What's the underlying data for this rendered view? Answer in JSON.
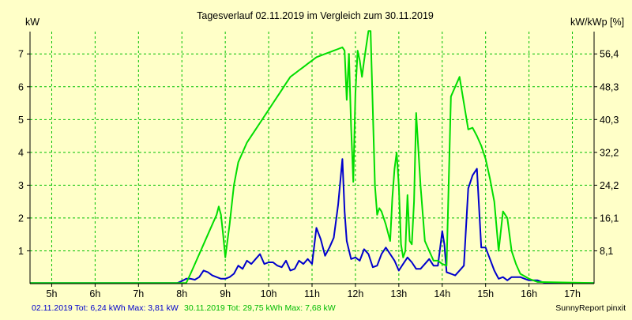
{
  "chart_data": {
    "type": "line",
    "title": "Tagesverlauf 02.11.2019 im Vergleich zum 30.11.2019",
    "ylabel_left": "kW",
    "ylabel_right": "kW/kWp [%]",
    "xlim": [
      4.5,
      17.5
    ],
    "ylim": [
      0,
      7.68
    ],
    "x_ticks": [
      5,
      6,
      7,
      8,
      9,
      10,
      11,
      12,
      13,
      14,
      15,
      16,
      17
    ],
    "x_tick_labels": [
      "5h",
      "6h",
      "7h",
      "8h",
      "9h",
      "10h",
      "11h",
      "12h",
      "13h",
      "14h",
      "15h",
      "16h",
      "17h"
    ],
    "y_ticks_left": [
      1,
      2,
      3,
      4,
      5,
      6,
      7
    ],
    "y_tick_labels_left": [
      "1",
      "2",
      "3",
      "4",
      "5",
      "6",
      "7"
    ],
    "y_ticks_right": [
      1,
      2,
      3,
      4,
      5,
      6,
      7
    ],
    "y_tick_labels_right": [
      "8,1",
      "16,1",
      "24,2",
      "32,2",
      "40,3",
      "48,3",
      "56,4"
    ],
    "grid": true,
    "series": [
      {
        "name": "02.11.2019",
        "color": "#0000cc",
        "x": [
          4.5,
          7.9,
          8.0,
          8.1,
          8.2,
          8.3,
          8.4,
          8.5,
          8.6,
          8.7,
          8.8,
          8.9,
          9.0,
          9.1,
          9.2,
          9.3,
          9.4,
          9.5,
          9.6,
          9.7,
          9.8,
          9.9,
          10.0,
          10.1,
          10.2,
          10.3,
          10.4,
          10.5,
          10.6,
          10.7,
          10.8,
          10.9,
          11.0,
          11.1,
          11.2,
          11.3,
          11.4,
          11.5,
          11.6,
          11.7,
          11.75,
          11.8,
          11.9,
          12.0,
          12.1,
          12.2,
          12.3,
          12.4,
          12.5,
          12.6,
          12.7,
          12.8,
          12.9,
          13.0,
          13.1,
          13.2,
          13.3,
          13.4,
          13.5,
          13.6,
          13.7,
          13.8,
          13.9,
          14.0,
          14.05,
          14.1,
          14.2,
          14.3,
          14.4,
          14.5,
          14.6,
          14.7,
          14.8,
          14.9,
          15.0,
          15.1,
          15.2,
          15.3,
          15.4,
          15.5,
          15.6,
          15.7,
          15.8,
          15.9,
          16.0,
          16.1,
          16.2,
          16.3,
          16.4,
          16.6,
          16.8,
          17.5
        ],
        "y": [
          0.02,
          0.02,
          0.08,
          0.15,
          0.15,
          0.12,
          0.2,
          0.4,
          0.35,
          0.25,
          0.2,
          0.15,
          0.15,
          0.2,
          0.3,
          0.55,
          0.45,
          0.7,
          0.6,
          0.75,
          0.9,
          0.6,
          0.65,
          0.65,
          0.55,
          0.5,
          0.7,
          0.4,
          0.45,
          0.7,
          0.6,
          0.75,
          0.6,
          1.7,
          1.35,
          0.85,
          1.1,
          1.4,
          2.4,
          3.8,
          2.2,
          1.3,
          0.75,
          0.8,
          0.7,
          1.05,
          0.9,
          0.5,
          0.55,
          0.9,
          1.1,
          0.9,
          0.7,
          0.4,
          0.6,
          0.8,
          0.65,
          0.45,
          0.45,
          0.6,
          0.75,
          0.55,
          0.55,
          1.6,
          1.2,
          0.35,
          0.3,
          0.25,
          0.4,
          0.55,
          2.9,
          3.3,
          3.5,
          1.1,
          1.1,
          0.75,
          0.4,
          0.15,
          0.2,
          0.1,
          0.2,
          0.2,
          0.2,
          0.15,
          0.1,
          0.1,
          0.1,
          0.05,
          0.02,
          0.02,
          0.02,
          0.02
        ]
      },
      {
        "name": "30.11.2019",
        "color": "#00dd00",
        "x": [
          4.5,
          8.1,
          8.2,
          8.3,
          8.4,
          8.5,
          8.6,
          8.7,
          8.8,
          8.85,
          8.9,
          8.95,
          9.0,
          9.1,
          9.2,
          9.3,
          9.4,
          9.5,
          9.6,
          9.7,
          9.8,
          9.9,
          10.0,
          10.1,
          10.2,
          10.3,
          10.4,
          10.5,
          10.6,
          10.7,
          10.8,
          10.9,
          11.0,
          11.1,
          11.2,
          11.3,
          11.4,
          11.5,
          11.6,
          11.7,
          11.75,
          11.8,
          11.85,
          11.9,
          11.95,
          12.0,
          12.05,
          12.1,
          12.15,
          12.2,
          12.3,
          12.35,
          12.45,
          12.5,
          12.55,
          12.6,
          12.7,
          12.8,
          12.85,
          12.9,
          12.95,
          13.0,
          13.05,
          13.1,
          13.15,
          13.2,
          13.25,
          13.3,
          13.35,
          13.4,
          13.5,
          13.6,
          13.7,
          13.8,
          13.9,
          14.0,
          14.1,
          14.2,
          14.3,
          14.4,
          14.5,
          14.6,
          14.7,
          14.8,
          14.9,
          15.0,
          15.1,
          15.2,
          15.3,
          15.4,
          15.5,
          15.6,
          15.7,
          15.8,
          16.0,
          16.2,
          17.5
        ],
        "y": [
          0.02,
          0.02,
          0.3,
          0.6,
          0.9,
          1.2,
          1.5,
          1.8,
          2.1,
          2.35,
          2.1,
          1.5,
          0.8,
          1.8,
          3.0,
          3.7,
          4.0,
          4.3,
          4.5,
          4.7,
          4.9,
          5.1,
          5.3,
          5.5,
          5.7,
          5.9,
          6.1,
          6.3,
          6.4,
          6.5,
          6.6,
          6.7,
          6.8,
          6.9,
          6.95,
          7.0,
          7.05,
          7.1,
          7.15,
          7.2,
          7.1,
          5.6,
          7.0,
          4.8,
          3.1,
          5.8,
          7.1,
          6.8,
          6.3,
          6.8,
          7.7,
          7.7,
          3.0,
          2.1,
          2.3,
          2.2,
          1.8,
          1.3,
          2.6,
          3.5,
          4.0,
          3.0,
          1.2,
          0.8,
          1.0,
          2.7,
          1.3,
          1.2,
          2.5,
          5.2,
          3.0,
          1.3,
          1.0,
          0.7,
          0.7,
          0.6,
          0.55,
          5.7,
          6.0,
          6.3,
          5.5,
          4.7,
          4.75,
          4.5,
          4.2,
          3.8,
          3.2,
          2.5,
          1.0,
          2.2,
          2.0,
          1.0,
          0.6,
          0.3,
          0.15,
          0.05,
          0.02
        ]
      }
    ],
    "legend_position": "bottom-left"
  },
  "footer": {
    "series1_text": "02.11.2019 Tot: 6,24 kWh Max: 3,81 kW",
    "series2_text": "30.11.2019 Tot: 29,75 kWh Max: 7,68 kW",
    "credit": "SunnyReport pinxit"
  }
}
